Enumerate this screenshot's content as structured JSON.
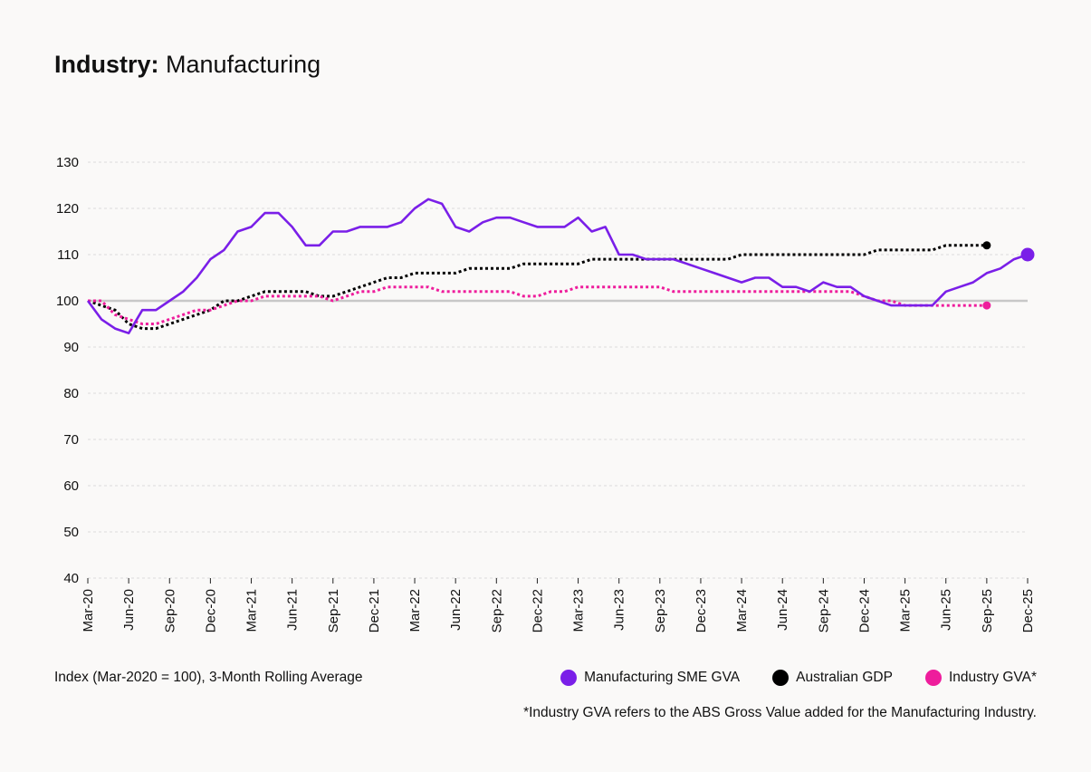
{
  "header": {
    "title_bold": "Industry:",
    "title_rest": "Manufacturing"
  },
  "footer": {
    "index_note": "Index (Mar-2020 = 100), 3-Month Rolling Average",
    "footnote": "*Industry GVA refers to the ABS Gross Value added for the Manufacturing Industry."
  },
  "chart_data": {
    "type": "line",
    "ylim": [
      40,
      130
    ],
    "yticks": [
      40,
      50,
      60,
      70,
      80,
      90,
      100,
      110,
      120,
      130
    ],
    "baseline": 100,
    "xlabels": [
      "Mar-20",
      "Jun-20",
      "Sep-20",
      "Dec-20",
      "Mar-21",
      "Jun-21",
      "Sep-21",
      "Dec-21",
      "Mar-22",
      "Jun-22",
      "Sep-22",
      "Dec-22",
      "Mar-23",
      "Jun-23",
      "Sep-23",
      "Dec-23",
      "Mar-24",
      "Jun-24",
      "Sep-24",
      "Dec-24",
      "Mar-25",
      "Jun-25",
      "Sep-25",
      "Dec-25"
    ],
    "grid": true,
    "legend_position": "bottom-right",
    "series": [
      {
        "name": "Manufacturing SME GVA",
        "color": "#7a1fe8",
        "style": "solid",
        "end_marker": "large",
        "values": [
          100,
          96,
          94,
          93,
          98,
          98,
          100,
          102,
          105,
          109,
          111,
          115,
          116,
          119,
          119,
          116,
          112,
          112,
          115,
          115,
          116,
          116,
          116,
          117,
          120,
          122,
          121,
          116,
          115,
          117,
          118,
          118,
          117,
          116,
          116,
          116,
          118,
          115,
          116,
          110,
          110,
          109,
          109,
          109,
          108,
          107,
          106,
          105,
          104,
          105,
          105,
          103,
          103,
          102,
          104,
          103,
          103,
          101,
          100,
          99,
          99,
          99,
          99,
          102,
          103,
          104,
          106,
          107,
          109,
          110
        ]
      },
      {
        "name": "Australian GDP",
        "color": "#000000",
        "style": "dotted",
        "end_marker": "small",
        "values": [
          100,
          99,
          98,
          95,
          94,
          94,
          95,
          96,
          97,
          98,
          100,
          100,
          101,
          102,
          102,
          102,
          102,
          101,
          101,
          102,
          103,
          104,
          105,
          105,
          106,
          106,
          106,
          106,
          107,
          107,
          107,
          107,
          108,
          108,
          108,
          108,
          108,
          109,
          109,
          109,
          109,
          109,
          109,
          109,
          109,
          109,
          109,
          109,
          110,
          110,
          110,
          110,
          110,
          110,
          110,
          110,
          110,
          110,
          111,
          111,
          111,
          111,
          111,
          112,
          112,
          112,
          112
        ]
      },
      {
        "name": "Industry GVA*",
        "color": "#ee1d9c",
        "style": "dotted",
        "end_marker": "small",
        "values": [
          100,
          100,
          97,
          96,
          95,
          95,
          96,
          97,
          98,
          98,
          99,
          100,
          100,
          101,
          101,
          101,
          101,
          101,
          100,
          101,
          102,
          102,
          103,
          103,
          103,
          103,
          102,
          102,
          102,
          102,
          102,
          102,
          101,
          101,
          102,
          102,
          103,
          103,
          103,
          103,
          103,
          103,
          103,
          102,
          102,
          102,
          102,
          102,
          102,
          102,
          102,
          102,
          102,
          102,
          102,
          102,
          102,
          101,
          100,
          100,
          99,
          99,
          99,
          99,
          99,
          99,
          99
        ]
      }
    ]
  }
}
